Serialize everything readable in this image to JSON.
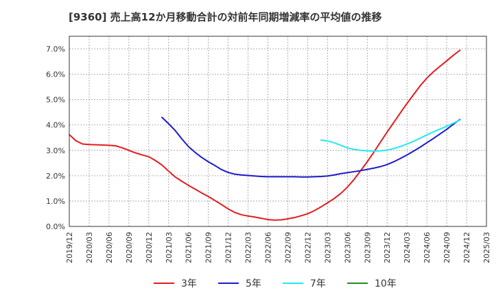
{
  "chart_data": {
    "type": "line",
    "title": "[9360]  売上高12か月移動合計の対前年同期増減率の平均値の推移",
    "xlabel": "",
    "ylabel": "",
    "x_ticks": [
      "2019/12",
      "2020/03",
      "2020/06",
      "2020/09",
      "2020/12",
      "2021/03",
      "2021/06",
      "2021/09",
      "2021/12",
      "2022/03",
      "2022/06",
      "2022/09",
      "2022/12",
      "2023/03",
      "2023/06",
      "2023/09",
      "2023/12",
      "2024/03",
      "2024/06",
      "2024/09",
      "2024/12",
      "2025/03"
    ],
    "y_ticks": [
      "0.0%",
      "1.0%",
      "2.0%",
      "3.0%",
      "4.0%",
      "5.0%",
      "6.0%",
      "7.0%"
    ],
    "ylim": [
      0,
      7.5
    ],
    "grid": true,
    "legend_position": "bottom",
    "series": [
      {
        "name": "3年",
        "color": "#e31a1c",
        "points": [
          [
            "2019/12",
            3.62
          ],
          [
            "2020/01",
            3.38
          ],
          [
            "2020/02",
            3.25
          ],
          [
            "2020/03",
            3.23
          ],
          [
            "2020/04",
            3.22
          ],
          [
            "2020/05",
            3.21
          ],
          [
            "2020/06",
            3.2
          ],
          [
            "2020/07",
            3.18
          ],
          [
            "2020/08",
            3.1
          ],
          [
            "2020/09",
            3.0
          ],
          [
            "2020/10",
            2.9
          ],
          [
            "2020/11",
            2.82
          ],
          [
            "2020/12",
            2.75
          ],
          [
            "2021/01",
            2.6
          ],
          [
            "2021/02",
            2.42
          ],
          [
            "2021/03",
            2.18
          ],
          [
            "2021/04",
            1.95
          ],
          [
            "2021/05",
            1.78
          ],
          [
            "2021/06",
            1.62
          ],
          [
            "2021/07",
            1.47
          ],
          [
            "2021/08",
            1.32
          ],
          [
            "2021/09",
            1.18
          ],
          [
            "2021/10",
            1.02
          ],
          [
            "2021/11",
            0.86
          ],
          [
            "2021/12",
            0.69
          ],
          [
            "2022/01",
            0.55
          ],
          [
            "2022/02",
            0.46
          ],
          [
            "2022/03",
            0.41
          ],
          [
            "2022/04",
            0.37
          ],
          [
            "2022/05",
            0.32
          ],
          [
            "2022/06",
            0.27
          ],
          [
            "2022/07",
            0.25
          ],
          [
            "2022/08",
            0.26
          ],
          [
            "2022/09",
            0.3
          ],
          [
            "2022/10",
            0.35
          ],
          [
            "2022/11",
            0.42
          ],
          [
            "2022/12",
            0.5
          ],
          [
            "2023/01",
            0.62
          ],
          [
            "2023/02",
            0.77
          ],
          [
            "2023/03",
            0.93
          ],
          [
            "2023/04",
            1.1
          ],
          [
            "2023/05",
            1.3
          ],
          [
            "2023/06",
            1.55
          ],
          [
            "2023/07",
            1.85
          ],
          [
            "2023/08",
            2.2
          ],
          [
            "2023/09",
            2.55
          ],
          [
            "2023/10",
            2.93
          ],
          [
            "2023/11",
            3.33
          ],
          [
            "2023/12",
            3.72
          ],
          [
            "2024/01",
            4.1
          ],
          [
            "2024/02",
            4.48
          ],
          [
            "2024/03",
            4.85
          ],
          [
            "2024/04",
            5.2
          ],
          [
            "2024/05",
            5.55
          ],
          [
            "2024/06",
            5.85
          ],
          [
            "2024/07",
            6.1
          ],
          [
            "2024/08",
            6.32
          ],
          [
            "2024/09",
            6.53
          ],
          [
            "2024/10",
            6.75
          ],
          [
            "2024/11",
            6.95
          ]
        ]
      },
      {
        "name": "5年",
        "color": "#1a1acc",
        "points": [
          [
            "2021/02",
            4.3
          ],
          [
            "2021/03",
            4.05
          ],
          [
            "2021/04",
            3.78
          ],
          [
            "2021/05",
            3.45
          ],
          [
            "2021/06",
            3.15
          ],
          [
            "2021/07",
            2.92
          ],
          [
            "2021/08",
            2.72
          ],
          [
            "2021/09",
            2.55
          ],
          [
            "2021/10",
            2.4
          ],
          [
            "2021/11",
            2.24
          ],
          [
            "2021/12",
            2.13
          ],
          [
            "2022/01",
            2.06
          ],
          [
            "2022/02",
            2.03
          ],
          [
            "2022/03",
            2.01
          ],
          [
            "2022/04",
            1.99
          ],
          [
            "2022/05",
            1.97
          ],
          [
            "2022/06",
            1.96
          ],
          [
            "2022/07",
            1.96
          ],
          [
            "2022/08",
            1.96
          ],
          [
            "2022/09",
            1.96
          ],
          [
            "2022/10",
            1.96
          ],
          [
            "2022/11",
            1.95
          ],
          [
            "2022/12",
            1.95
          ],
          [
            "2023/01",
            1.96
          ],
          [
            "2023/02",
            1.97
          ],
          [
            "2023/03",
            1.99
          ],
          [
            "2023/04",
            2.03
          ],
          [
            "2023/05",
            2.08
          ],
          [
            "2023/06",
            2.12
          ],
          [
            "2023/07",
            2.16
          ],
          [
            "2023/08",
            2.2
          ],
          [
            "2023/09",
            2.25
          ],
          [
            "2023/10",
            2.3
          ],
          [
            "2023/11",
            2.36
          ],
          [
            "2023/12",
            2.44
          ],
          [
            "2024/01",
            2.55
          ],
          [
            "2024/02",
            2.68
          ],
          [
            "2024/03",
            2.82
          ],
          [
            "2024/04",
            2.97
          ],
          [
            "2024/05",
            3.13
          ],
          [
            "2024/06",
            3.3
          ],
          [
            "2024/07",
            3.47
          ],
          [
            "2024/08",
            3.65
          ],
          [
            "2024/09",
            3.83
          ],
          [
            "2024/10",
            4.03
          ],
          [
            "2024/11",
            4.22
          ]
        ]
      },
      {
        "name": "7年",
        "color": "#22e8f0",
        "points": [
          [
            "2023/02",
            3.41
          ],
          [
            "2023/03",
            3.37
          ],
          [
            "2023/04",
            3.3
          ],
          [
            "2023/05",
            3.2
          ],
          [
            "2023/06",
            3.1
          ],
          [
            "2023/07",
            3.04
          ],
          [
            "2023/08",
            3.0
          ],
          [
            "2023/09",
            2.98
          ],
          [
            "2023/10",
            2.97
          ],
          [
            "2023/11",
            2.98
          ],
          [
            "2023/12",
            3.01
          ],
          [
            "2024/01",
            3.07
          ],
          [
            "2024/02",
            3.15
          ],
          [
            "2024/03",
            3.25
          ],
          [
            "2024/04",
            3.36
          ],
          [
            "2024/05",
            3.48
          ],
          [
            "2024/06",
            3.61
          ],
          [
            "2024/07",
            3.73
          ],
          [
            "2024/08",
            3.84
          ],
          [
            "2024/09",
            3.95
          ],
          [
            "2024/10",
            4.07
          ],
          [
            "2024/11",
            4.2
          ]
        ]
      },
      {
        "name": "10年",
        "color": "#228b22",
        "points": []
      }
    ]
  }
}
